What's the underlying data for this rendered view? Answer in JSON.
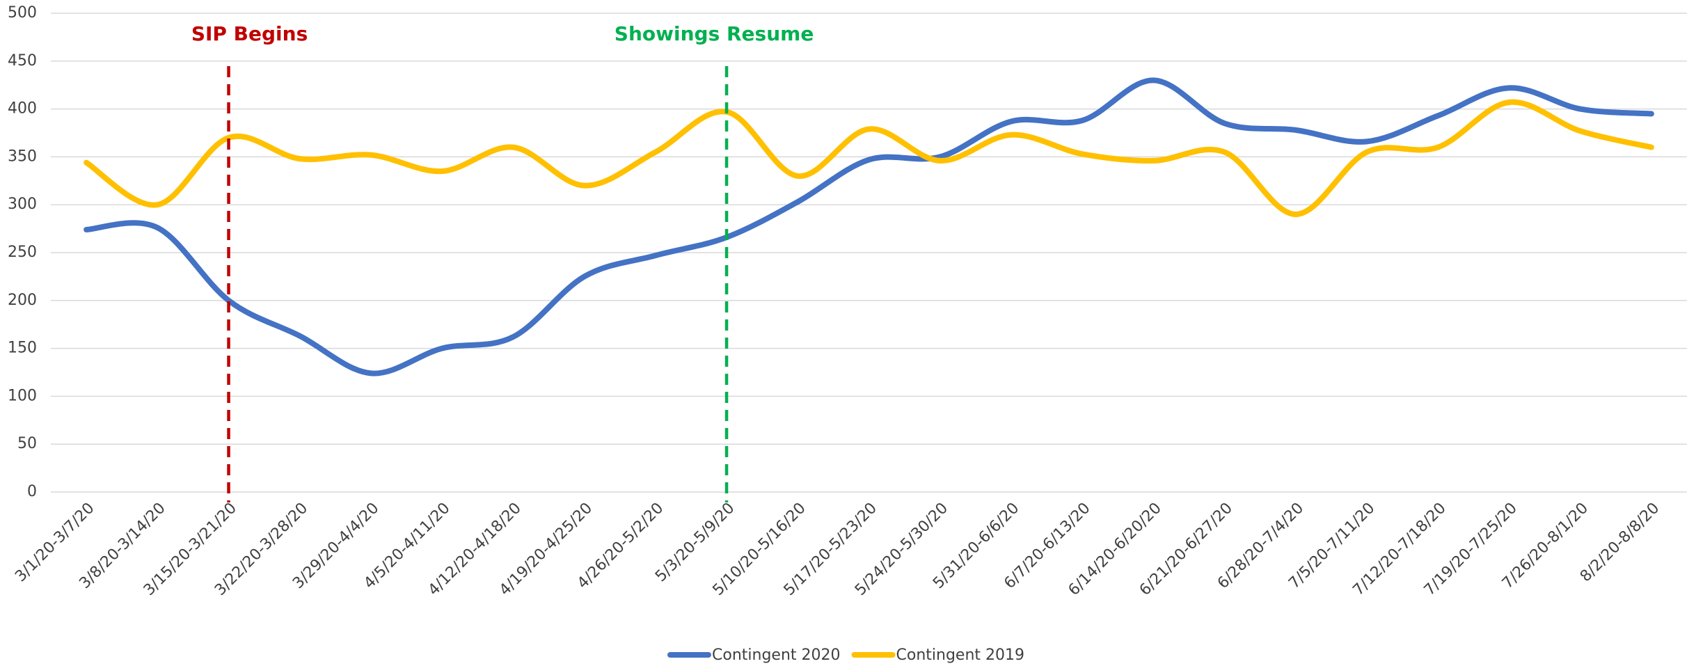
{
  "chart_data": {
    "type": "line",
    "categories": [
      "3/1/20-3/7/20",
      "3/8/20-3/14/20",
      "3/15/20-3/21/20",
      "3/22/20-3/28/20",
      "3/29/20-4/4/20",
      "4/5/20-4/11/20",
      "4/12/20-4/18/20",
      "4/19/20-4/25/20",
      "4/26/20-5/2/20",
      "5/3/20-5/9/20",
      "5/10/20-5/16/20",
      "5/17/20-5/23/20",
      "5/24/20-5/30/20",
      "5/31/20-6/6/20",
      "6/7/20-6/13/20",
      "6/14/20-6/20/20",
      "6/21/20-6/27/20",
      "6/28/20-7/4/20",
      "7/5/20-7/11/20",
      "7/12/20-7/18/20",
      "7/19/20-7/25/20",
      "7/26/20-8/1/20",
      "8/2/20-8/8/20"
    ],
    "series": [
      {
        "name": "Contingent 2020",
        "color": "#4472c4",
        "values": [
          274,
          276,
          200,
          163,
          124,
          150,
          162,
          225,
          247,
          266,
          303,
          347,
          350,
          387,
          388,
          430,
          385,
          378,
          366,
          393,
          422,
          400,
          395
        ]
      },
      {
        "name": "Contingent 2019",
        "color": "#ffc000",
        "values": [
          344,
          300,
          370,
          348,
          352,
          335,
          360,
          320,
          355,
          397,
          330,
          379,
          346,
          373,
          353,
          346,
          355,
          290,
          355,
          360,
          407,
          377,
          360
        ]
      }
    ],
    "annotations": [
      {
        "text": "SIP Begins",
        "x": "3/15/20-3/21/20",
        "color": "#c00000"
      },
      {
        "text": "Showings Resume",
        "x": "5/3/20-5/9/20",
        "color": "#00b050"
      }
    ],
    "ylim": [
      0,
      500
    ],
    "yticks": [
      0,
      50,
      100,
      150,
      200,
      250,
      300,
      350,
      400,
      450,
      500
    ],
    "grid": true,
    "legend": "bottom",
    "smooth": true
  }
}
